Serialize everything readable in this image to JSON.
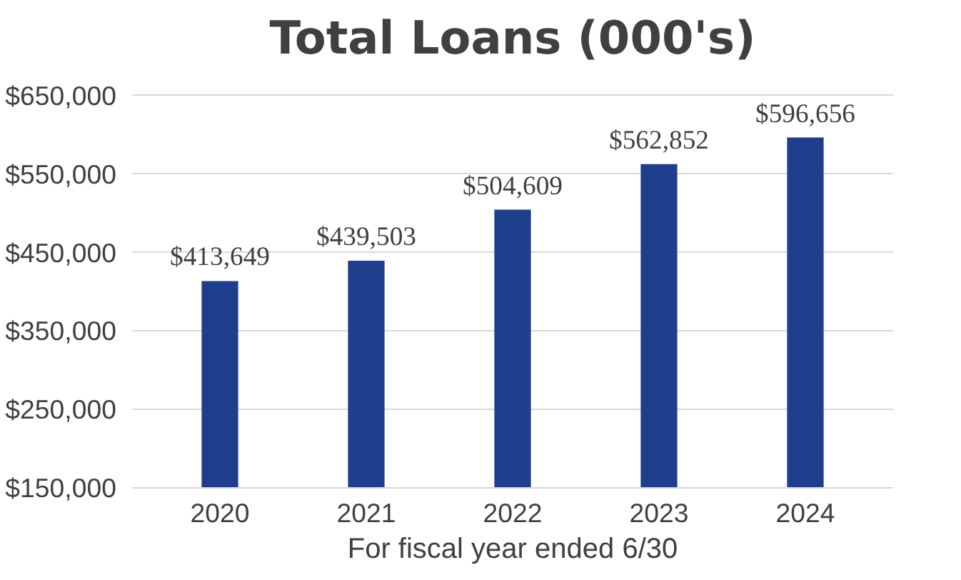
{
  "chart_data": {
    "type": "bar",
    "title": "Total Loans (000's)",
    "xlabel": "For fiscal year ended 6/30",
    "categories": [
      "2020",
      "2021",
      "2022",
      "2023",
      "2024"
    ],
    "values": [
      413649,
      439503,
      504609,
      562852,
      596656
    ],
    "value_labels": [
      "$413,649",
      "$439,503",
      "$504,609",
      "$562,852",
      "$596,656"
    ],
    "color": "#1f3f8c",
    "ylim": [
      150000,
      650000
    ],
    "yticks": [
      {
        "value": 150000,
        "label": "$150,000"
      },
      {
        "value": 250000,
        "label": "$250,000"
      },
      {
        "value": 350000,
        "label": "$350,000"
      },
      {
        "value": 450000,
        "label": "$450,000"
      },
      {
        "value": 550000,
        "label": "$550,000"
      },
      {
        "value": 650000,
        "label": "$650,000"
      }
    ],
    "grid": "y"
  }
}
